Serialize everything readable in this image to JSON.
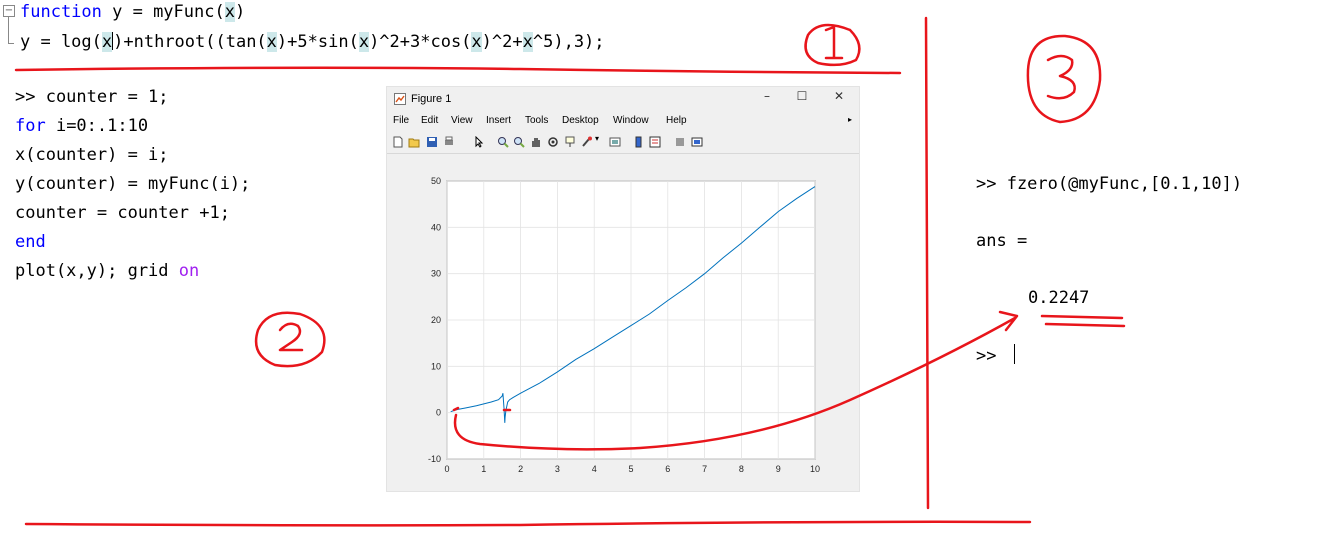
{
  "editor": {
    "line1": {
      "kw": "function",
      "pre": " y = myFunc(",
      "arg": "x",
      "post": ")"
    },
    "line2": {
      "pre": "y = log(",
      "a1": "x",
      "m1": ")+nthroot((tan(",
      "a2": "x",
      "m2": ")+5*sin(",
      "a3": "x",
      "m3": ")^2+3*cos(",
      "a4": "x",
      "m4": ")^2+",
      "a5": "x",
      "m5": "^5),3);"
    }
  },
  "script": {
    "l1": ">> counter = 1;",
    "l2_kw": "for",
    "l2_rest": " i=0:.1:10",
    "l3": "x(counter) = i;",
    "l4": "y(counter) = myFunc(i);",
    "l5": "counter = counter +1;",
    "l6_kw": "end",
    "l7_pre": "plot(x,y); grid ",
    "l7_kw": "on"
  },
  "figure": {
    "title": "Figure 1",
    "controls": {
      "minimize": "–",
      "maximize": "☐",
      "close": "✕"
    },
    "menu": [
      "File",
      "Edit",
      "View",
      "Insert",
      "Tools",
      "Desktop",
      "Window",
      "Help"
    ],
    "toolbar_icons": [
      "new-file-icon",
      "open-folder-icon",
      "save-icon",
      "print-icon",
      "pointer-icon",
      "zoom-in-icon",
      "zoom-out-icon",
      "pan-icon",
      "rotate-icon",
      "data-cursor-icon",
      "brush-icon",
      "link-icon",
      "colorbar-icon",
      "legend-icon",
      "hide-plot-tools-icon",
      "show-plot-tools-icon"
    ]
  },
  "chart_data": {
    "type": "line",
    "xlim": [
      0,
      10
    ],
    "ylim": [
      -10,
      50
    ],
    "grid": true,
    "xticks": [
      "0",
      "1",
      "2",
      "3",
      "4",
      "5",
      "6",
      "7",
      "8",
      "9",
      "10"
    ],
    "yticks": [
      "-10",
      "0",
      "10",
      "20",
      "30",
      "40",
      "50"
    ],
    "series": [
      {
        "color": "#0072bd",
        "x": [
          0.1,
          0.2,
          0.3,
          0.5,
          0.8,
          1.0,
          1.2,
          1.4,
          1.5,
          1.52,
          1.55,
          1.57,
          1.58,
          1.6,
          1.65,
          1.7,
          1.8,
          2.0,
          2.5,
          3.0,
          3.5,
          4.0,
          4.5,
          5.0,
          5.5,
          6.0,
          6.5,
          7.0,
          7.5,
          8.0,
          8.5,
          9.0,
          9.5,
          10.0
        ],
        "y": [
          0.2,
          0.5,
          0.7,
          1.0,
          1.5,
          1.9,
          2.3,
          2.8,
          3.6,
          4.2,
          1.0,
          -2.2,
          -1.0,
          0.5,
          2.3,
          2.8,
          3.3,
          4.2,
          6.3,
          8.8,
          11.5,
          13.8,
          16.3,
          18.8,
          21.3,
          24.2,
          27.0,
          30.0,
          33.4,
          36.6,
          40.0,
          43.4,
          46.2,
          48.8
        ]
      }
    ]
  },
  "command": {
    "input": ">> fzero(@myFunc,[0.1,10])",
    "ans_label": "ans =",
    "ans_value": "0.2247",
    "prompt": ">>"
  },
  "annotation_colors": {
    "red": "#e8151b",
    "grid": "#e3e3e3",
    "line": "#0072bd"
  }
}
